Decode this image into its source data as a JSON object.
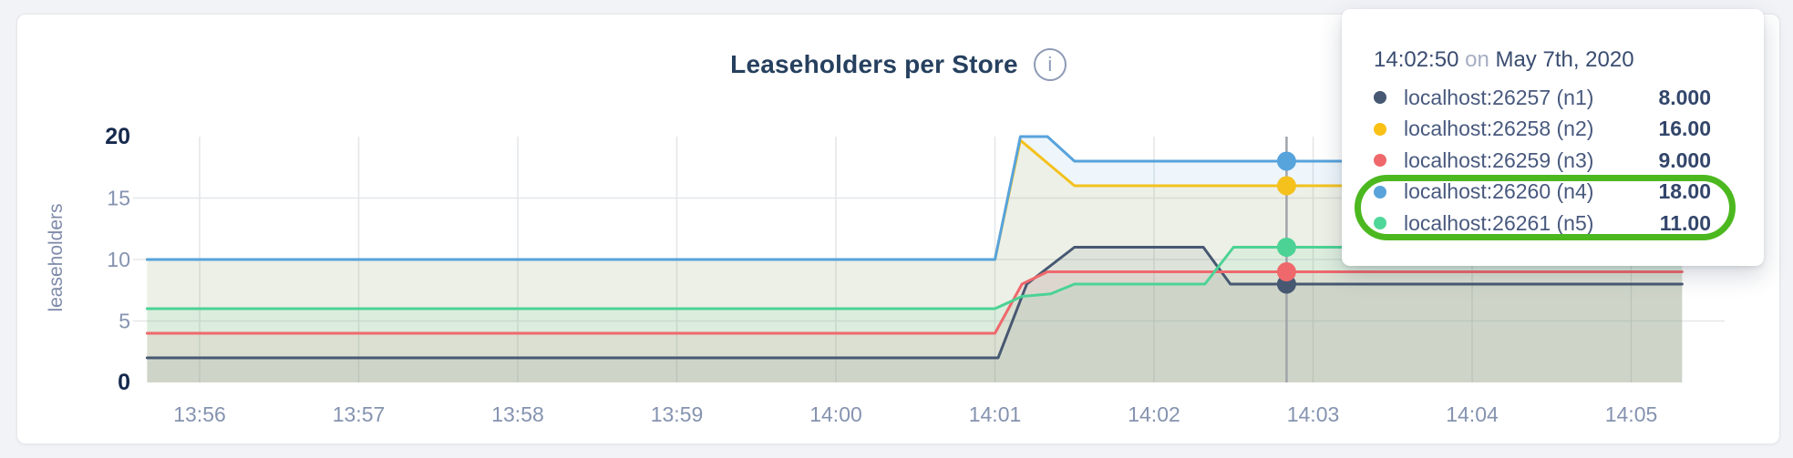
{
  "header": {
    "title": "Leaseholders per Store",
    "info_icon": "i"
  },
  "y_axis": {
    "label": "leaseholders"
  },
  "chart_data": {
    "type": "line",
    "title": "Leaseholders per Store",
    "xlabel": "",
    "ylabel": "leaseholders",
    "ylim": [
      0,
      20
    ],
    "grid": true,
    "y_ticks": [
      0,
      5,
      10,
      15,
      20
    ],
    "y_ticks_bold": [
      0,
      20
    ],
    "y_gridlines": [
      5,
      10,
      15
    ],
    "x_ticks": [
      {
        "label": "13:56",
        "minute": 0
      },
      {
        "label": "13:57",
        "minute": 1
      },
      {
        "label": "13:58",
        "minute": 2
      },
      {
        "label": "13:59",
        "minute": 3
      },
      {
        "label": "14:00",
        "minute": 4
      },
      {
        "label": "14:01",
        "minute": 5
      },
      {
        "label": "14:02",
        "minute": 6
      },
      {
        "label": "14:03",
        "minute": 7
      },
      {
        "label": "14:04",
        "minute": 8
      },
      {
        "label": "14:05",
        "minute": 9
      }
    ],
    "series": [
      {
        "name": "localhost:26257 (n1)",
        "color": "#475872",
        "points": [
          [
            -0.33,
            2
          ],
          [
            5.02,
            2
          ],
          [
            5.2,
            8
          ],
          [
            5.5,
            11
          ],
          [
            6.31,
            11
          ],
          [
            6.48,
            8
          ],
          [
            9.32,
            8
          ]
        ]
      },
      {
        "name": "localhost:26258 (n2)",
        "color": "#f4c11d",
        "points": [
          [
            -0.33,
            10
          ],
          [
            5.0,
            10
          ],
          [
            5.16,
            19.7
          ],
          [
            5.5,
            16
          ],
          [
            9.32,
            16
          ]
        ]
      },
      {
        "name": "localhost:26259 (n3)",
        "color": "#ef686c",
        "points": [
          [
            -0.33,
            4
          ],
          [
            5.0,
            4
          ],
          [
            5.17,
            8
          ],
          [
            5.33,
            9
          ],
          [
            9.32,
            9
          ]
        ]
      },
      {
        "name": "localhost:26260 (n4)",
        "color": "#57a3dc",
        "points": [
          [
            -0.33,
            10
          ],
          [
            5.0,
            10
          ],
          [
            5.16,
            20
          ],
          [
            5.33,
            20
          ],
          [
            5.5,
            18
          ],
          [
            9.32,
            18
          ]
        ]
      },
      {
        "name": "localhost:26261 (n5)",
        "color": "#4cd295",
        "points": [
          [
            -0.33,
            6
          ],
          [
            5.0,
            6
          ],
          [
            5.17,
            7
          ],
          [
            5.35,
            7.2
          ],
          [
            5.5,
            8
          ],
          [
            6.32,
            8
          ],
          [
            6.5,
            11
          ],
          [
            9.32,
            11
          ]
        ]
      }
    ],
    "hover": {
      "minute": 6.8333,
      "time_label": "14:02:50",
      "dot_values": [
        8,
        16,
        9,
        18,
        11
      ]
    },
    "legend_position": "tooltip"
  },
  "tooltip": {
    "time": "14:02:50",
    "connector": "on",
    "date": "May 7th, 2020",
    "rows": [
      {
        "label": "localhost:26257 (n1)",
        "value": "8.000",
        "color": "#475872"
      },
      {
        "label": "localhost:26258 (n2)",
        "value": "16.00",
        "color": "#f9c016"
      },
      {
        "label": "localhost:26259 (n3)",
        "value": "9.000",
        "color": "#ef686c"
      },
      {
        "label": "localhost:26260 (n4)",
        "value": "18.00",
        "color": "#58a4da"
      },
      {
        "label": "localhost:26261 (n5)",
        "value": "11.00",
        "color": "#4fd79a"
      }
    ],
    "highlight_color": "#4cb81f",
    "highlighted_rows": [
      3,
      4
    ]
  }
}
